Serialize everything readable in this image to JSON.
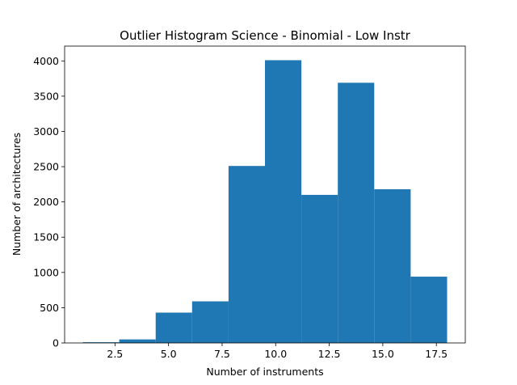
{
  "chart_data": {
    "type": "bar",
    "title": "Outlier Histogram Science - Binomial - Low Instr",
    "xlabel": "Number of instruments",
    "ylabel": "Number of architectures",
    "bins": [
      {
        "x0": 1.0,
        "x1": 2.7,
        "count": 10
      },
      {
        "x0": 2.7,
        "x1": 4.4,
        "count": 50
      },
      {
        "x0": 4.4,
        "x1": 6.1,
        "count": 430
      },
      {
        "x0": 6.1,
        "x1": 7.8,
        "count": 590
      },
      {
        "x0": 7.8,
        "x1": 9.5,
        "count": 2510
      },
      {
        "x0": 9.5,
        "x1": 11.2,
        "count": 4010
      },
      {
        "x0": 11.2,
        "x1": 12.9,
        "count": 2100
      },
      {
        "x0": 12.9,
        "x1": 14.6,
        "count": 3690
      },
      {
        "x0": 14.6,
        "x1": 16.3,
        "count": 2180
      },
      {
        "x0": 16.3,
        "x1": 18.0,
        "count": 940
      }
    ],
    "xlim": [
      0.15,
      18.85
    ],
    "ylim": [
      0,
      4210
    ],
    "xticks": [
      2.5,
      5.0,
      7.5,
      10.0,
      12.5,
      15.0,
      17.5
    ],
    "xtick_labels": [
      "2.5",
      "5.0",
      "7.5",
      "10.0",
      "12.5",
      "15.0",
      "17.5"
    ],
    "yticks": [
      0,
      500,
      1000,
      1500,
      2000,
      2500,
      3000,
      3500,
      4000
    ],
    "ytick_labels": [
      "0",
      "500",
      "1000",
      "1500",
      "2000",
      "2500",
      "3000",
      "3500",
      "4000"
    ],
    "bar_color": "#1f77b4",
    "grid": false,
    "legend": "none"
  }
}
